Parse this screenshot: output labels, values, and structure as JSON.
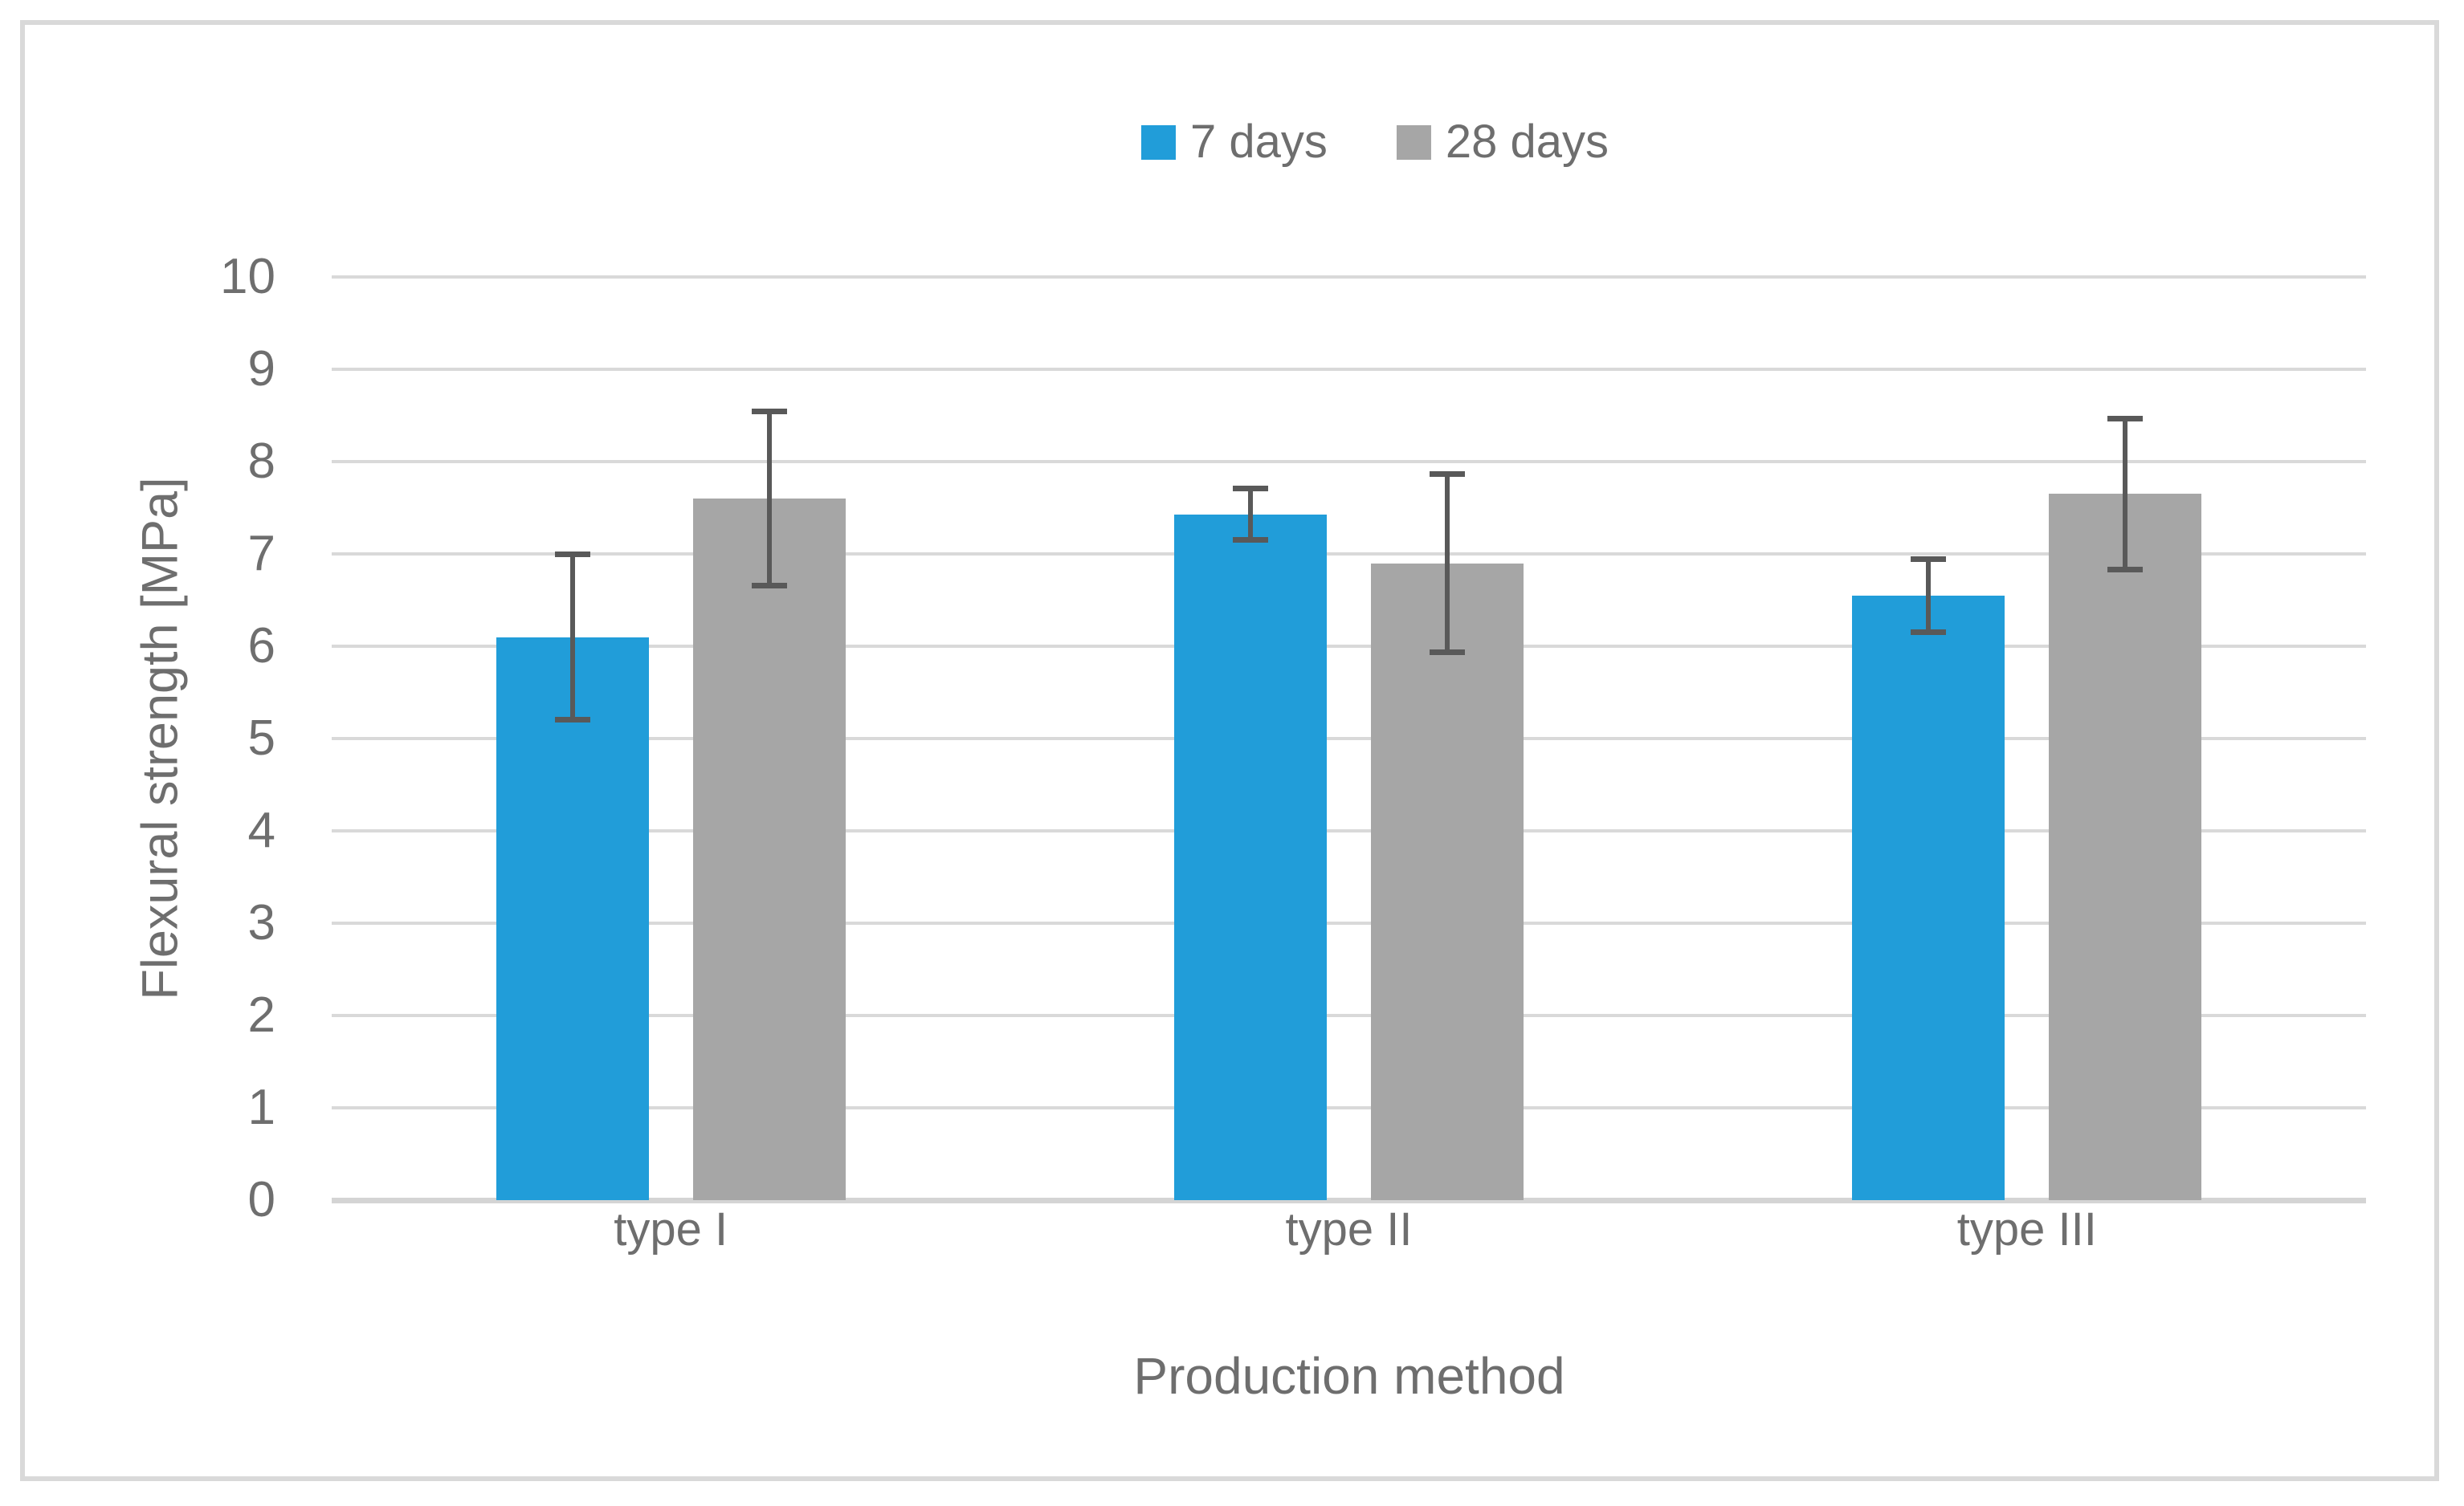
{
  "colors": {
    "series_blue": "#219DD9",
    "series_gray": "#A6A6A6",
    "error_bar": "#595959",
    "gridline": "#D9D9D9",
    "text": "#6E6E6E",
    "frame": "#D9D9D9"
  },
  "legend": {
    "items": [
      {
        "label": "7 days",
        "color": "#219DD9"
      },
      {
        "label": "28 days",
        "color": "#A6A6A6"
      }
    ]
  },
  "chart_data": {
    "type": "bar",
    "title": "",
    "categories": [
      "type I",
      "type II",
      "type III"
    ],
    "series": [
      {
        "name": "7 days",
        "color": "#219DD9",
        "values": [
          6.1,
          7.43,
          6.55
        ],
        "errors": [
          0.9,
          0.28,
          0.4
        ]
      },
      {
        "name": "28 days",
        "color": "#A6A6A6",
        "values": [
          7.6,
          6.9,
          7.65
        ],
        "errors": [
          0.95,
          0.97,
          0.82
        ]
      }
    ],
    "xlabel": "Production method",
    "ylabel": "Flexural strength [MPa]",
    "ylim": [
      0,
      10
    ],
    "ytick_step": 1,
    "ytick_labels": [
      "0",
      "1",
      "2",
      "3",
      "4",
      "5",
      "6",
      "7",
      "8",
      "9",
      "10"
    ],
    "grid": true,
    "legend_position": "top-center",
    "error_bars": true
  }
}
